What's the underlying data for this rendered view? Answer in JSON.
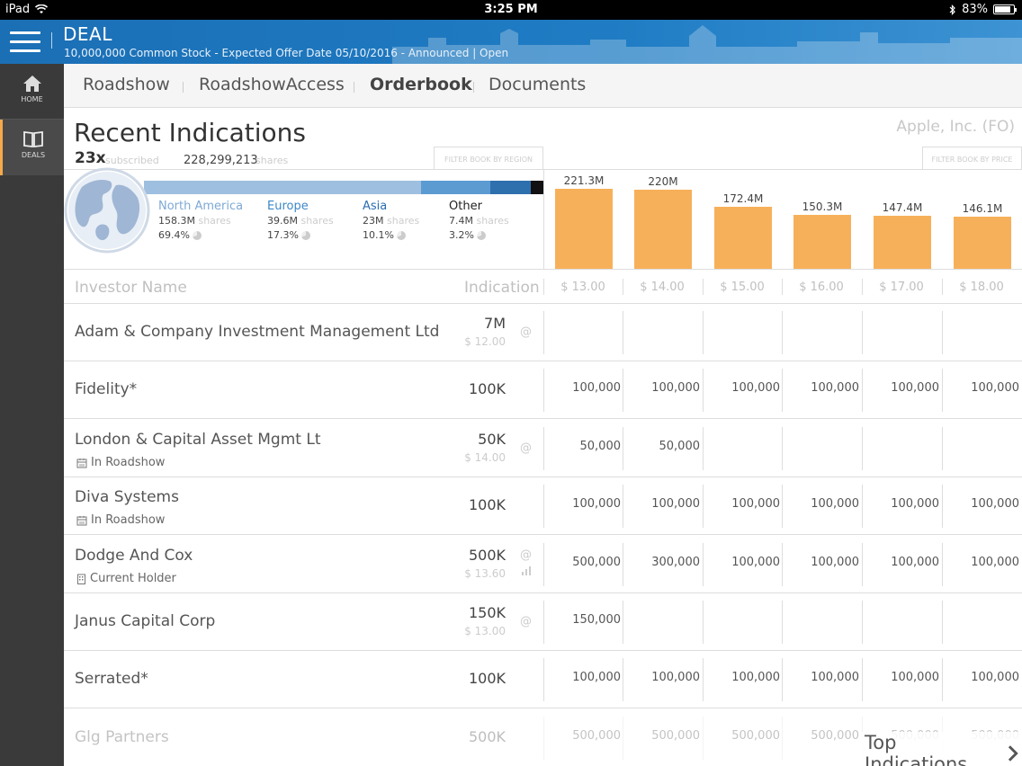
{
  "status_bar": {
    "device": "iPad",
    "time": "3:25 PM",
    "battery": "83%"
  },
  "header": {
    "title": "DEAL",
    "subtitle": "10,000,000 Common Stock - Expected Offer Date 05/10/2016 - Announced | Open"
  },
  "sidebar": [
    {
      "label": "HOME",
      "icon": "home-icon"
    },
    {
      "label": "DEALS",
      "icon": "book-icon"
    }
  ],
  "tabs": [
    "Roadshow",
    "RoadshowAccess",
    "Orderbook",
    "Documents"
  ],
  "active_tab": "Orderbook",
  "summary": {
    "title": "Recent Indications",
    "company": "Apple, Inc. (FO)",
    "multiple": "23x",
    "multiple_label": "subscribed",
    "shares": "228,299,213",
    "shares_label": "shares",
    "filter_region": "FILTER BOOK BY REGION",
    "filter_price": "FILTER BOOK BY PRICE"
  },
  "regions": [
    {
      "name": "North America",
      "shares": "158.3M",
      "shares_label": "shares",
      "pct": "69.4%",
      "color": "#9fbfe0"
    },
    {
      "name": "Europe",
      "shares": "39.6M",
      "shares_label": "shares",
      "pct": "17.3%",
      "color": "#5b9bd2"
    },
    {
      "name": "Asia",
      "shares": "23M",
      "shares_label": "shares",
      "pct": "10.1%",
      "color": "#2e6fae"
    },
    {
      "name": "Other",
      "shares": "7.4M",
      "shares_label": "shares",
      "pct": "3.2%",
      "color": "#111111"
    }
  ],
  "chart_data": {
    "type": "bar",
    "categories": [
      "$ 13.00",
      "$ 14.00",
      "$ 15.00",
      "$ 16.00",
      "$ 17.00",
      "$ 18.00"
    ],
    "values": [
      221.3,
      220,
      172.4,
      150.3,
      147.4,
      146.1
    ],
    "value_labels": [
      "221.3M",
      "220M",
      "172.4M",
      "150.3M",
      "147.4M",
      "146.1M"
    ],
    "color": "#f7b05a",
    "ylim": [
      0,
      230
    ]
  },
  "table": {
    "col_name": "Investor Name",
    "col_indication": "Indication",
    "rows": [
      {
        "name": "Adam & Company Investment Management Ltd",
        "note": "",
        "indication": "7M",
        "price": "$ 12.00",
        "at": "@",
        "cells": [
          "",
          "",
          "",
          "",
          "",
          ""
        ]
      },
      {
        "name": "Fidelity*",
        "note": "",
        "indication": "100K",
        "price": "",
        "at": "",
        "cells": [
          "100,000",
          "100,000",
          "100,000",
          "100,000",
          "100,000",
          "100,000"
        ]
      },
      {
        "name": "London & Capital Asset Mgmt Lt",
        "note": "In Roadshow",
        "note_icon": "calendar-icon",
        "indication": "50K",
        "price": "$ 14.00",
        "at": "@",
        "cells": [
          "50,000",
          "50,000",
          "",
          "",
          "",
          ""
        ]
      },
      {
        "name": "Diva Systems",
        "note": "In Roadshow",
        "note_icon": "calendar-icon",
        "indication": "100K",
        "price": "",
        "at": "",
        "cells": [
          "100,000",
          "100,000",
          "100,000",
          "100,000",
          "100,000",
          "100,000"
        ]
      },
      {
        "name": "Dodge And Cox",
        "note": "Current Holder",
        "note_icon": "building-icon",
        "indication": "500K",
        "price": "$ 13.60",
        "at": "@",
        "cells": [
          "500,000",
          "300,000",
          "100,000",
          "100,000",
          "100,000",
          "100,000"
        ]
      },
      {
        "name": "Janus Capital Corp",
        "note": "",
        "indication": "150K",
        "price": "$ 13.00",
        "at": "@",
        "cells": [
          "150,000",
          "",
          "",
          "",
          "",
          ""
        ]
      },
      {
        "name": "Serrated*",
        "note": "",
        "indication": "100K",
        "price": "",
        "at": "",
        "cells": [
          "100,000",
          "100,000",
          "100,000",
          "100,000",
          "100,000",
          "100,000"
        ]
      },
      {
        "name": "Glg Partners",
        "note": "",
        "indication": "500K",
        "price": "",
        "at": "",
        "cells": [
          "500,000",
          "500,000",
          "500,000",
          "500,000",
          "500,000",
          "500,000"
        ]
      }
    ]
  },
  "footer": {
    "top_indications": "Top Indications"
  }
}
